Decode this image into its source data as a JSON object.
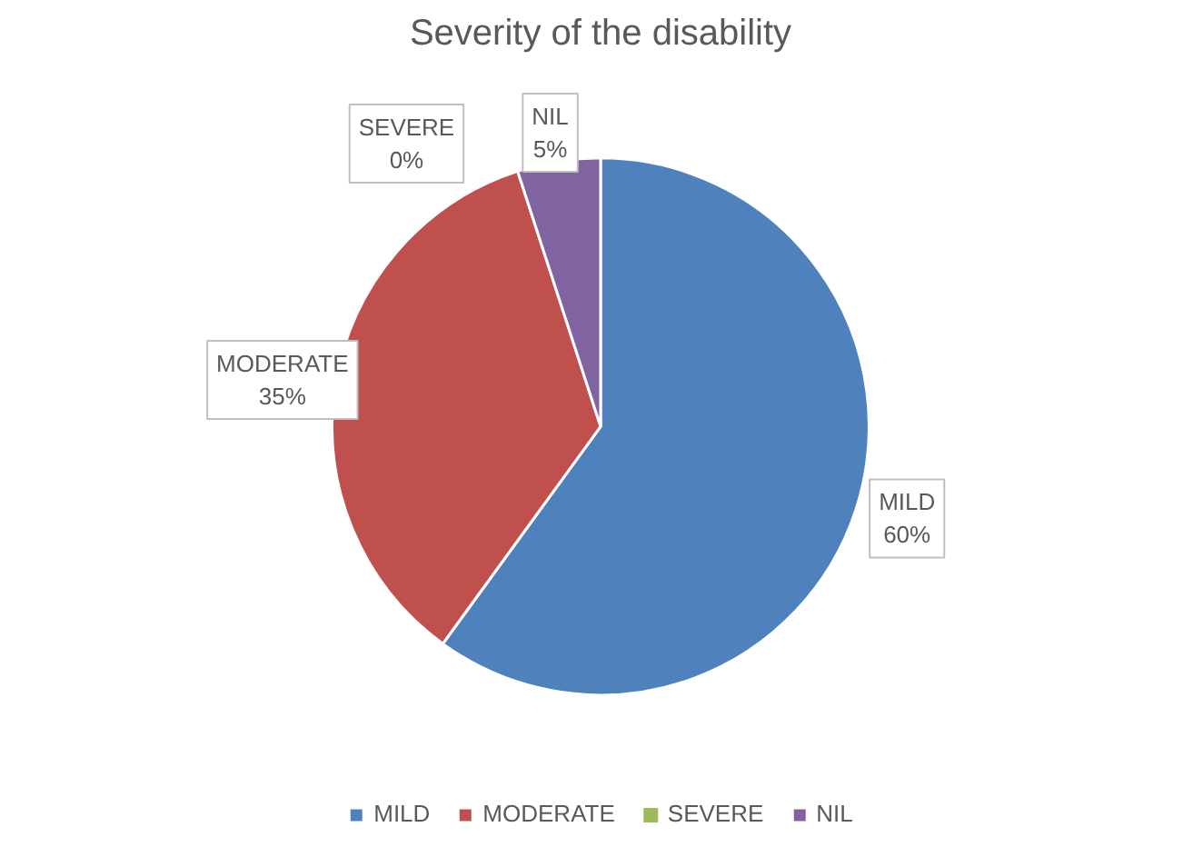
{
  "chart_data": {
    "type": "pie",
    "title": "Severity of the disability",
    "categories": [
      "MILD",
      "MODERATE",
      "SEVERE",
      "NIL"
    ],
    "values": [
      60,
      35,
      0,
      5
    ],
    "colors": [
      "#4f81bd",
      "#c0504d",
      "#9bbb59",
      "#8064a2"
    ],
    "value_labels": [
      "60%",
      "35%",
      "0%",
      "5%"
    ],
    "legend": "bottom"
  }
}
